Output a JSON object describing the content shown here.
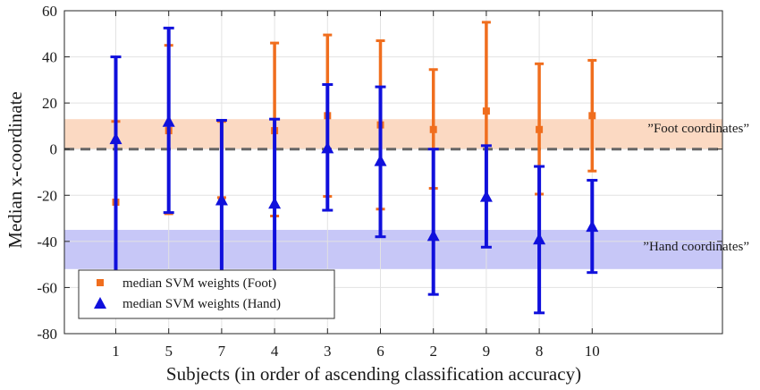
{
  "chart_data": {
    "type": "scatter",
    "title": "",
    "xlabel": "Subjects (in order of ascending classification accuracy)",
    "ylabel": "Median x-coordinate",
    "ylim": [
      -80,
      60
    ],
    "yticks": [
      -80,
      -60,
      -40,
      -20,
      0,
      20,
      40,
      60
    ],
    "ytick_labels": [
      "-80",
      "-60",
      "-40",
      "-20",
      "0",
      "20",
      "40",
      "60"
    ],
    "categories": [
      "1",
      "5",
      "7",
      "4",
      "3",
      "6",
      "2",
      "9",
      "8",
      "10"
    ],
    "grid": true,
    "reference_line": {
      "y": 0,
      "style": "dashed",
      "color": "#666666"
    },
    "bands": [
      {
        "label": "”Foot coordinates”",
        "y_low": 0,
        "y_high": 13,
        "color": "#fbd9c2"
      },
      {
        "label": "”Hand coordinates”",
        "y_low": -52,
        "y_high": -35,
        "color": "#c7c7f7"
      }
    ],
    "series": [
      {
        "name": "median SVM weights (Foot)",
        "marker": "square",
        "color": "#f06e1e",
        "values": [
          -23,
          8,
          -22,
          8,
          14.5,
          10.5,
          8.5,
          16.5,
          8.5,
          14.5
        ],
        "lower": [
          -55,
          -28,
          -21,
          -29,
          -20.5,
          -26,
          -17,
          -22,
          -19.5,
          -9.5
        ],
        "upper": [
          12,
          45,
          12,
          46,
          49.5,
          47,
          34.5,
          55,
          37,
          38.5
        ]
      },
      {
        "name": "median SVM weights (Hand)",
        "marker": "triangle",
        "color": "#1010dc",
        "values": [
          4.5,
          12,
          -22,
          -23.5,
          0.5,
          -5,
          -37.5,
          -20.5,
          -39,
          -33.5
        ],
        "lower": [
          -55,
          -27.5,
          -55,
          -55,
          -26.5,
          -38,
          -63,
          -42.5,
          -71,
          -53.5
        ],
        "upper": [
          40,
          52.5,
          12.5,
          13,
          28,
          27,
          0,
          1.5,
          -7.5,
          -13.5
        ]
      }
    ],
    "legend_position": "bottom-left"
  }
}
